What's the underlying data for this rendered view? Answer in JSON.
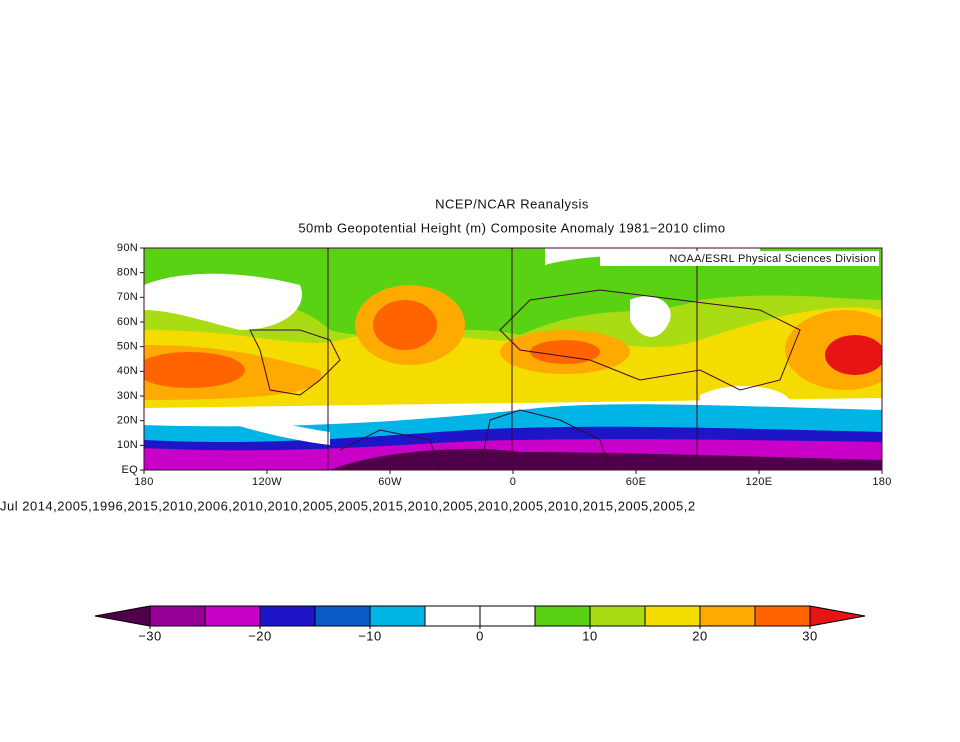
{
  "title": [
    "NCEP/NCAR Reanalysis",
    "50mb Geopotential Height (m) Composite Anomaly 1981−2010 climo"
  ],
  "map": {
    "credit": "NOAA/ESRL Physical Sciences Division",
    "lat_labels": [
      "EQ",
      "10N",
      "20N",
      "30N",
      "40N",
      "50N",
      "60N",
      "70N",
      "80N",
      "90N"
    ],
    "lon_labels": [
      "180",
      "120W",
      "60W",
      "0",
      "60E",
      "120E",
      "180"
    ]
  },
  "caption": "Jul 2014,2005,1996,2015,2010,2006,2010,2010,2005,2005,2015,2010,2005,2010,2005,2010,2015,2005,2005,2",
  "colorbar": {
    "lim": [
      -30,
      30
    ],
    "colors": [
      "#50004a",
      "#960096",
      "#c800c8",
      "#1e14c8",
      "#0a5ac8",
      "#00b4e6",
      "#ffffff",
      "#ffffff",
      "#5ad214",
      "#aadc14",
      "#f5dc00",
      "#ffaa00",
      "#ff6400",
      "#e61414"
    ],
    "ticks": [
      {
        "value": -30,
        "label": "−30"
      },
      {
        "value": -20,
        "label": "−20"
      },
      {
        "value": -10,
        "label": "−10"
      },
      0,
      10,
      20,
      30
    ]
  }
}
